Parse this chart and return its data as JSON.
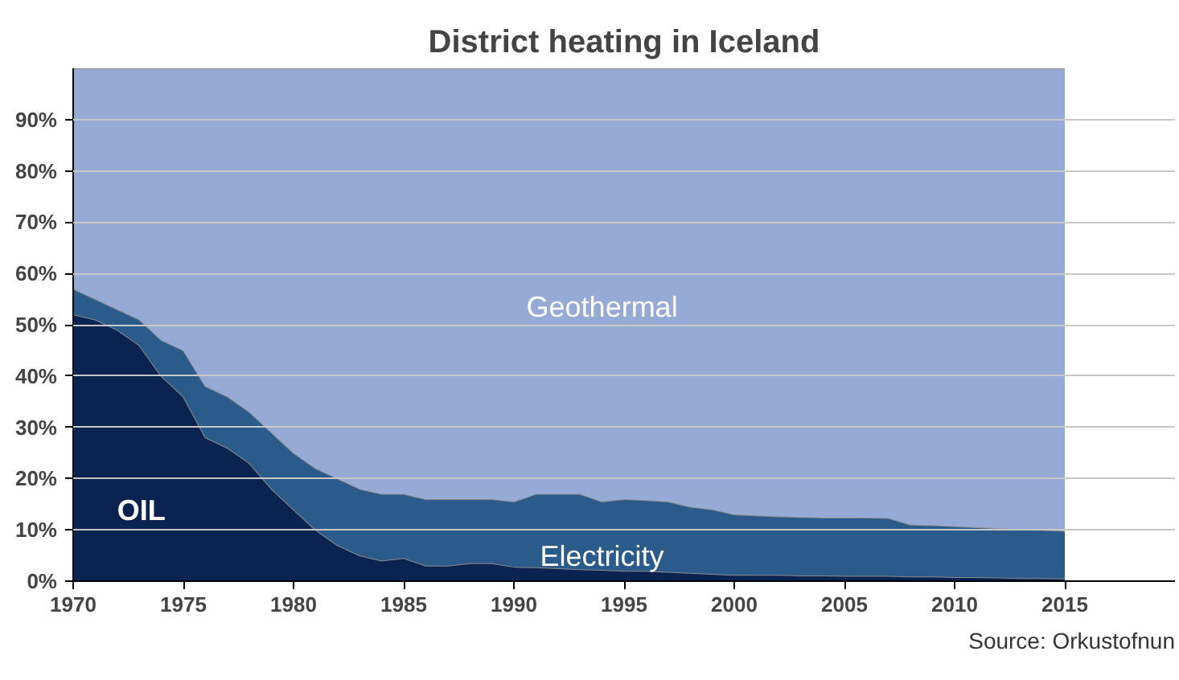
{
  "chart_data": {
    "type": "area",
    "stacked": true,
    "title": "District heating in Iceland",
    "x": [
      1970,
      1971,
      1972,
      1973,
      1974,
      1975,
      1976,
      1977,
      1978,
      1979,
      1980,
      1981,
      1982,
      1983,
      1984,
      1985,
      1986,
      1987,
      1988,
      1989,
      1990,
      1991,
      1992,
      1993,
      1994,
      1995,
      1996,
      1997,
      1998,
      1999,
      2000,
      2001,
      2002,
      2003,
      2004,
      2005,
      2006,
      2007,
      2008,
      2009,
      2010,
      2011,
      2012,
      2013,
      2014,
      2015
    ],
    "series": [
      {
        "name": "OIL",
        "color": "#0b2350",
        "values": [
          52,
          51,
          49,
          46,
          40,
          36,
          28,
          26,
          23,
          18,
          14,
          10,
          7,
          5,
          4,
          4.5,
          3,
          3,
          3.5,
          3.5,
          2.8,
          2.7,
          2.5,
          2.3,
          2.2,
          2,
          2,
          1.8,
          1.6,
          1.4,
          1.2,
          1.2,
          1.2,
          1.1,
          1.1,
          1,
          1,
          1,
          0.9,
          0.9,
          0.8,
          0.8,
          0.7,
          0.6,
          0.6,
          0.5
        ]
      },
      {
        "name": "Electricity",
        "color": "#2b5b8a",
        "values": [
          5,
          4,
          4,
          5,
          7,
          9,
          10,
          10,
          10,
          11,
          11,
          12,
          13,
          13,
          13,
          12.5,
          13,
          13,
          12.5,
          12.5,
          12.7,
          14.3,
          14.5,
          14.7,
          13.3,
          14,
          13.8,
          13.7,
          12.9,
          12.6,
          11.8,
          11.6,
          11.4,
          11.4,
          11.3,
          11.4,
          11.4,
          11.3,
          10.1,
          10,
          9.9,
          9.7,
          9.6,
          9.5,
          9.4,
          9.3
        ]
      },
      {
        "name": "Geothermal",
        "color": "#95aad5",
        "values": [
          43,
          45,
          47,
          49,
          53,
          55,
          62,
          64,
          67,
          71,
          75,
          78,
          80,
          82,
          83,
          83,
          84,
          84,
          84,
          84,
          84.5,
          83,
          83,
          83,
          84.5,
          84,
          84.2,
          84.5,
          85.5,
          86,
          87,
          87.2,
          87.4,
          87.5,
          87.6,
          87.6,
          87.6,
          87.7,
          89,
          89.1,
          89.3,
          89.5,
          89.7,
          89.9,
          90,
          90.2
        ]
      }
    ],
    "xlim": [
      1970,
      2020
    ],
    "xticks": [
      1970,
      1975,
      1980,
      1985,
      1990,
      1995,
      2000,
      2005,
      2010,
      2015
    ],
    "ylim": [
      0,
      100
    ],
    "yticks": [
      {
        "value": 0,
        "label": "0%"
      },
      {
        "value": 10,
        "label": "10%"
      },
      {
        "value": 20,
        "label": "20%"
      },
      {
        "value": 30,
        "label": "30%"
      },
      {
        "value": 40,
        "label": "40%"
      },
      {
        "value": 50,
        "label": "50%"
      },
      {
        "value": 60,
        "label": "60%"
      },
      {
        "value": 70,
        "label": "70%"
      },
      {
        "value": 80,
        "label": "80%"
      },
      {
        "value": 90,
        "label": "90%"
      }
    ],
    "grid": "y",
    "annotations": [
      "Source: Orkustofnun"
    ]
  }
}
